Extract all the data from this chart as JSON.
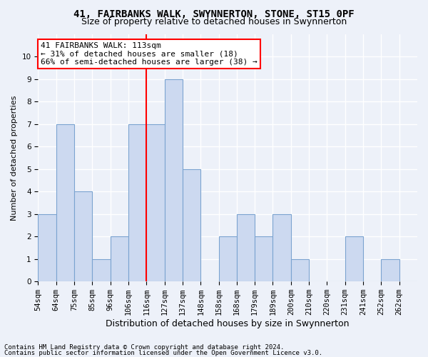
{
  "title": "41, FAIRBANKS WALK, SWYNNERTON, STONE, ST15 0PF",
  "subtitle": "Size of property relative to detached houses in Swynnerton",
  "xlabel": "Distribution of detached houses by size in Swynnerton",
  "ylabel": "Number of detached properties",
  "bin_labels": [
    "54sqm",
    "64sqm",
    "75sqm",
    "85sqm",
    "96sqm",
    "106sqm",
    "116sqm",
    "127sqm",
    "137sqm",
    "148sqm",
    "158sqm",
    "168sqm",
    "179sqm",
    "189sqm",
    "200sqm",
    "210sqm",
    "220sqm",
    "231sqm",
    "241sqm",
    "252sqm",
    "262sqm"
  ],
  "bar_values": [
    3,
    7,
    4,
    1,
    2,
    7,
    7,
    9,
    5,
    0,
    2,
    3,
    2,
    3,
    1,
    0,
    0,
    2,
    0,
    1,
    0
  ],
  "bar_color": "#ccd9f0",
  "bar_edge_color": "#7ba3d0",
  "vline_bar_index": 6,
  "vline_color": "red",
  "annotation_text": "41 FAIRBANKS WALK: 113sqm\n← 31% of detached houses are smaller (18)\n66% of semi-detached houses are larger (38) →",
  "annotation_box_color": "white",
  "annotation_box_edge_color": "red",
  "ylim_max": 11,
  "yticks": [
    0,
    1,
    2,
    3,
    4,
    5,
    6,
    7,
    8,
    9,
    10
  ],
  "footer1": "Contains HM Land Registry data © Crown copyright and database right 2024.",
  "footer2": "Contains public sector information licensed under the Open Government Licence v3.0.",
  "title_fontsize": 10,
  "subtitle_fontsize": 9,
  "ylabel_fontsize": 8,
  "xlabel_fontsize": 9,
  "tick_fontsize": 7.5,
  "annotation_fontsize": 8,
  "footer_fontsize": 6.5,
  "background_color": "#edf1f9",
  "axes_background_color": "#edf1f9",
  "grid_color": "white",
  "grid_linewidth": 1.0
}
